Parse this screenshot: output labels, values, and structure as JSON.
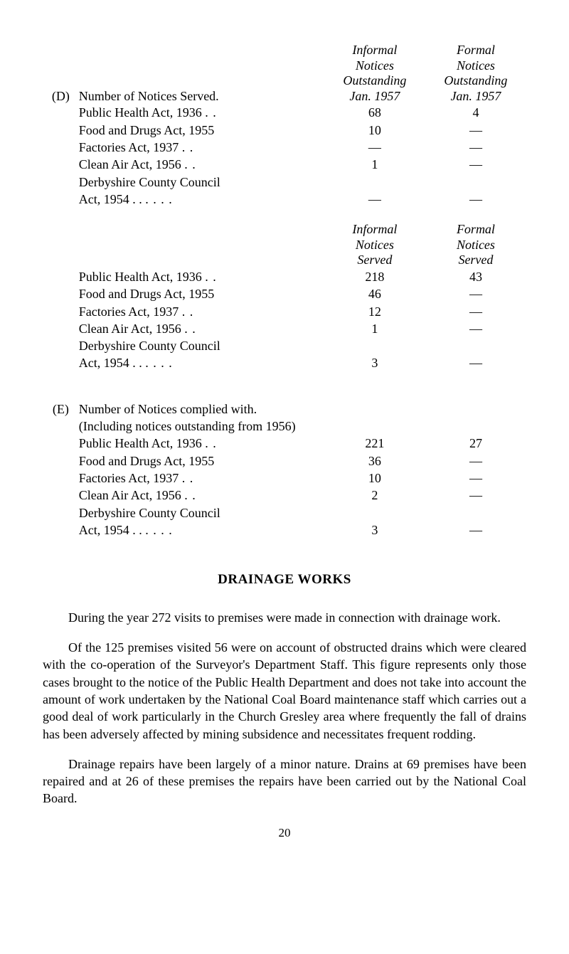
{
  "sectionD": {
    "marker": "(D)",
    "title": "Number of Notices Served.",
    "block1": {
      "head_informal": [
        "Informal",
        "Notices",
        "Outstanding",
        "Jan. 1957"
      ],
      "head_formal": [
        "Formal",
        "Notices",
        "Outstanding",
        "Jan. 1957"
      ],
      "rows": [
        {
          "label": "Public Health Act, 1936",
          "suffix": ". .",
          "c1": "68",
          "c2": "4"
        },
        {
          "label": "Food and Drugs Act, 1955",
          "suffix": "",
          "c1": "10",
          "c2": "—"
        },
        {
          "label": "Factories Act, 1937",
          "suffix": ". .",
          "c1": "—",
          "c2": "—"
        },
        {
          "label": "Clean Air Act, 1956",
          "suffix": ". .",
          "c1": "1",
          "c2": "—"
        },
        {
          "label": "Derbyshire County Council",
          "suffix": "",
          "c1": "",
          "c2": ""
        },
        {
          "label": "Act, 1954 . .",
          "suffix": ". .      . .",
          "c1": "—",
          "c2": "—",
          "indent": true
        }
      ]
    },
    "block2": {
      "head_informal": [
        "Informal",
        "Notices",
        "Served"
      ],
      "head_formal": [
        "Formal",
        "Notices",
        "Served"
      ],
      "rows": [
        {
          "label": "Public Health Act, 1936",
          "suffix": ". .",
          "c1": "218",
          "c2": "43"
        },
        {
          "label": "Food and Drugs Act, 1955",
          "suffix": "",
          "c1": "46",
          "c2": "—"
        },
        {
          "label": "Factories Act, 1937",
          "suffix": ". .",
          "c1": "12",
          "c2": "—"
        },
        {
          "label": "Clean Air Act, 1956",
          "suffix": ". .",
          "c1": "1",
          "c2": "—"
        },
        {
          "label": "Derbyshire County Council",
          "suffix": "",
          "c1": "",
          "c2": ""
        },
        {
          "label": "Act, 1954 . .",
          "suffix": ". .      . .",
          "c1": "3",
          "c2": "—",
          "indent": true
        }
      ]
    }
  },
  "sectionE": {
    "marker": "(E)",
    "title": "Number of Notices complied with.",
    "subtitle": "(Including notices outstanding from 1956)",
    "rows": [
      {
        "label": "Public Health Act, 1936",
        "suffix": ". .",
        "c1": "221",
        "c2": "27"
      },
      {
        "label": "Food and Drugs Act, 1955",
        "suffix": "",
        "c1": "36",
        "c2": "—"
      },
      {
        "label": "Factories Act, 1937",
        "suffix": ". .",
        "c1": "10",
        "c2": "—"
      },
      {
        "label": "Clean Air Act, 1956",
        "suffix": ". .",
        "c1": "2",
        "c2": "—"
      },
      {
        "label": "Derbyshire County Council",
        "suffix": "",
        "c1": "",
        "c2": ""
      },
      {
        "label": "Act, 1954 . .",
        "suffix": ". .      . .",
        "c1": "3",
        "c2": "—",
        "indent": true
      }
    ]
  },
  "drainage": {
    "heading": "DRAINAGE  WORKS",
    "p1": "During the year 272 visits to premises were made in connection with drainage work.",
    "p2": "Of the 125 premises visited 56 were on account of obstructed drains which were cleared with the co-operation of the Surveyor's Department Staff. This figure represents only those cases brought to the notice of the Public Health Department and does not take into account the amount of work undertaken by the National Coal Board maintenance staff which carries out a good deal of work particularly in the Church Gresley area where frequently the fall of drains has been adversely affected by mining subsidence and necessitates frequent rodding.",
    "p3": "Drainage repairs have been largely of a minor nature. Drains at 69 premises have been repaired and at 26 of these premises the repairs have been carried out by the National Coal Board."
  },
  "pageNumber": "20"
}
